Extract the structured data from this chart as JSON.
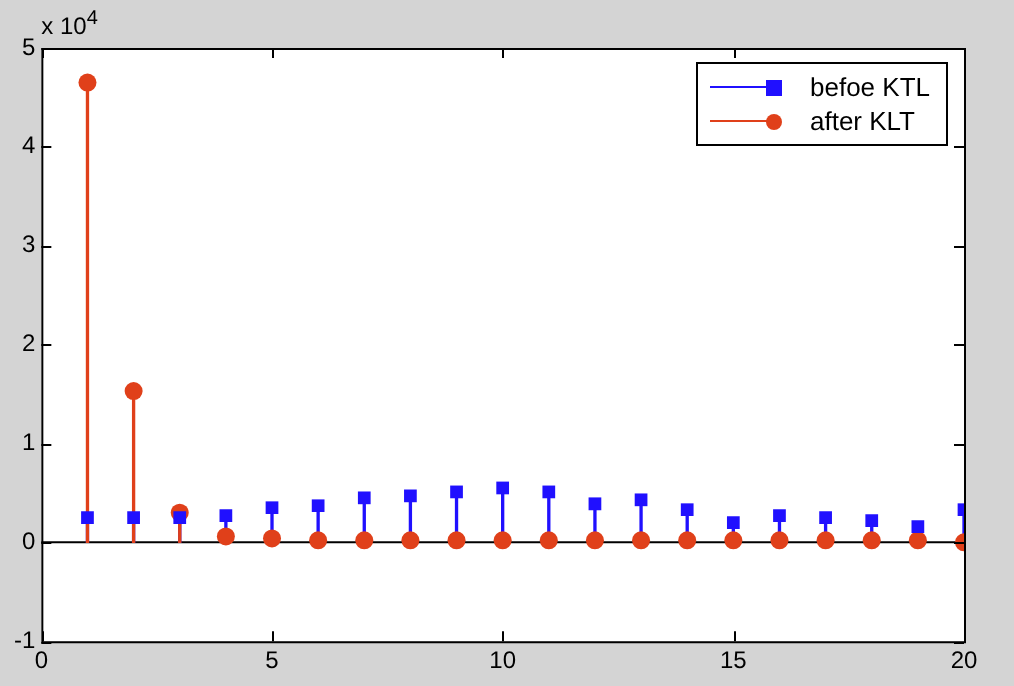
{
  "chart_data": {
    "type": "lollipop",
    "annotations": [
      "x 10$^{4}$"
    ],
    "x": [
      1,
      2,
      3,
      4,
      5,
      6,
      7,
      8,
      9,
      10,
      11,
      12,
      13,
      14,
      15,
      16,
      17,
      18,
      19,
      20
    ],
    "xlim": [
      0,
      20
    ],
    "xticks": [
      0,
      5,
      10,
      15,
      20
    ],
    "ylim": [
      -1,
      5
    ],
    "yticks": [
      -1,
      0,
      1,
      2,
      3,
      4,
      5
    ],
    "legend": "top right",
    "ref_lines": [
      {
        "axis": "y",
        "value": 0
      }
    ],
    "series": [
      {
        "name": "befoe KTL",
        "color": "#2010ff",
        "marker": "square",
        "values": [
          0.25,
          0.25,
          0.25,
          0.27,
          0.35,
          0.37,
          0.45,
          0.47,
          0.51,
          0.55,
          0.51,
          0.39,
          0.43,
          0.33,
          0.2,
          0.27,
          0.25,
          0.22,
          0.16,
          0.33
        ]
      },
      {
        "name": "after KLT",
        "color": "#e0401a",
        "marker": "circle",
        "values": [
          4.65,
          1.53,
          0.3,
          0.06,
          0.04,
          0.02,
          0.02,
          0.02,
          0.02,
          0.02,
          0.02,
          0.02,
          0.02,
          0.02,
          0.02,
          0.02,
          0.02,
          0.02,
          0.02,
          0
        ]
      }
    ]
  }
}
